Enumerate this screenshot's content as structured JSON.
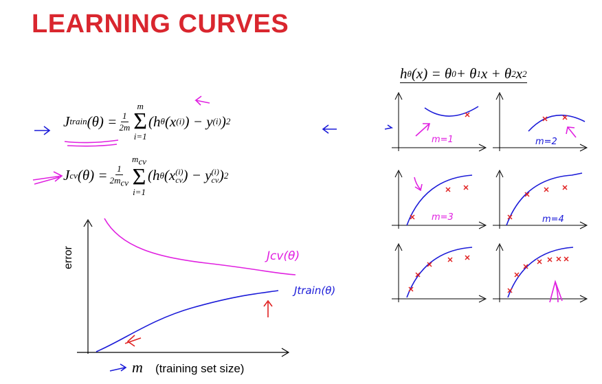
{
  "title": "LEARNING CURVES",
  "formulas": [
    [
      "J",
      {
        "sub": "train"
      },
      "(θ) = ",
      {
        "num": [
          "1"
        ],
        "den": [
          "2m"
        ]
      },
      {
        "sum": "Σ",
        "top": [
          "m"
        ],
        "bottom": [
          "i=1"
        ]
      },
      "(h",
      {
        "sub": "θ"
      },
      "(x",
      {
        "sup": "(i)"
      },
      ") − y",
      {
        "sup": "(i)"
      },
      ")",
      {
        "sup": "2"
      }
    ],
    [
      "J",
      {
        "sub": "cv"
      },
      "(θ) = ",
      {
        "num": [
          "1"
        ],
        "den": [
          "2m",
          {
            "sub": "cv"
          }
        ]
      },
      {
        "sum": "Σ",
        "top": [
          "m",
          {
            "sub": "cv"
          }
        ],
        "bottom": [
          "i=1"
        ]
      },
      "(h",
      {
        "sub": "θ"
      },
      "(x",
      {
        "sup": "(i)",
        "sub": "cv"
      },
      ") − y",
      {
        "sup": "(i)",
        "sub": "cv"
      },
      ")",
      {
        "sup": "2"
      }
    ]
  ],
  "hypothesis": [
    "h",
    {
      "sub": "θ"
    },
    "(x) = θ",
    {
      "sub": "0"
    },
    " + θ",
    {
      "sub": "1"
    },
    "x + θ",
    {
      "sub": "2"
    },
    "x",
    {
      "sup": "2"
    }
  ],
  "plot": {
    "y_label": "error",
    "x_label_symbol": "m",
    "x_label": "(training set size)",
    "cv_label": "Jcv(θ)",
    "train_label": "Jtrain(θ)"
  },
  "panels": [
    "m=1",
    "m=2",
    "m=3",
    "m=4"
  ]
}
